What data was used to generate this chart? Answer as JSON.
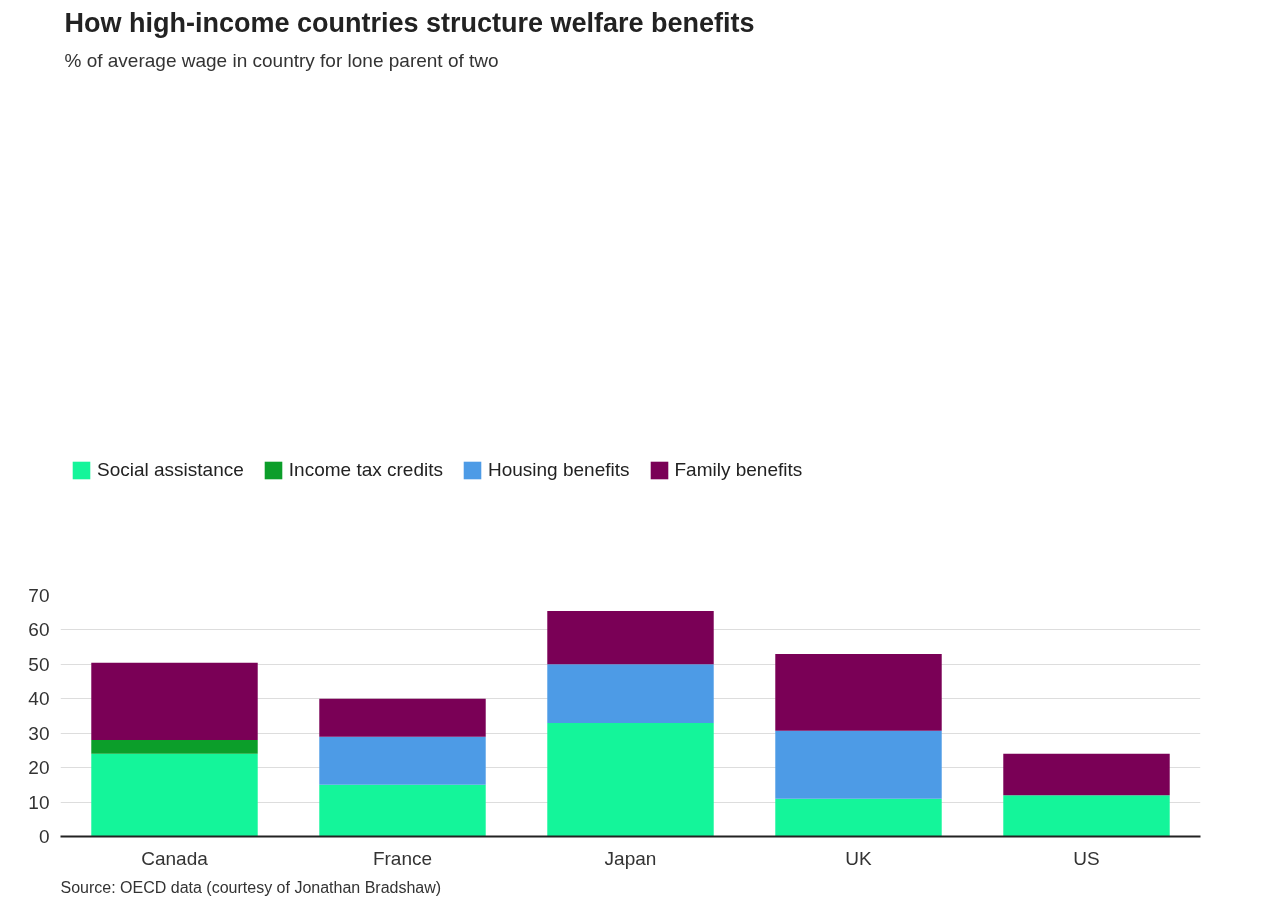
{
  "chart_data": {
    "type": "bar",
    "title": "How high-income countries structure welfare benefits",
    "subtitle": "% of average wage in country for lone parent of two",
    "categories": [
      "Canada",
      "France",
      "Japan",
      "UK",
      "US"
    ],
    "stacked": true,
    "series": [
      {
        "name": "Social assistance",
        "color": "#14f59a",
        "values": [
          24,
          15,
          33,
          11,
          12
        ]
      },
      {
        "name": "Income tax credits",
        "color": "#0c9e2a",
        "values": [
          4,
          null,
          null,
          null,
          null
        ]
      },
      {
        "name": "Housing benefits",
        "color": "#4d9be6",
        "values": [
          null,
          14,
          17,
          19.7,
          null
        ]
      },
      {
        "name": "Family benefits",
        "color": "#7a0056",
        "values": [
          22.5,
          11,
          15.5,
          22.3,
          12
        ]
      }
    ],
    "ylim": [
      0,
      70
    ],
    "yticks": [
      0,
      10,
      20,
      30,
      40,
      50,
      60,
      70
    ],
    "grid": "y",
    "legend": "top",
    "annotations": [
      "Source: OECD data (courtesy of Jonathan Bradshaw)"
    ]
  }
}
